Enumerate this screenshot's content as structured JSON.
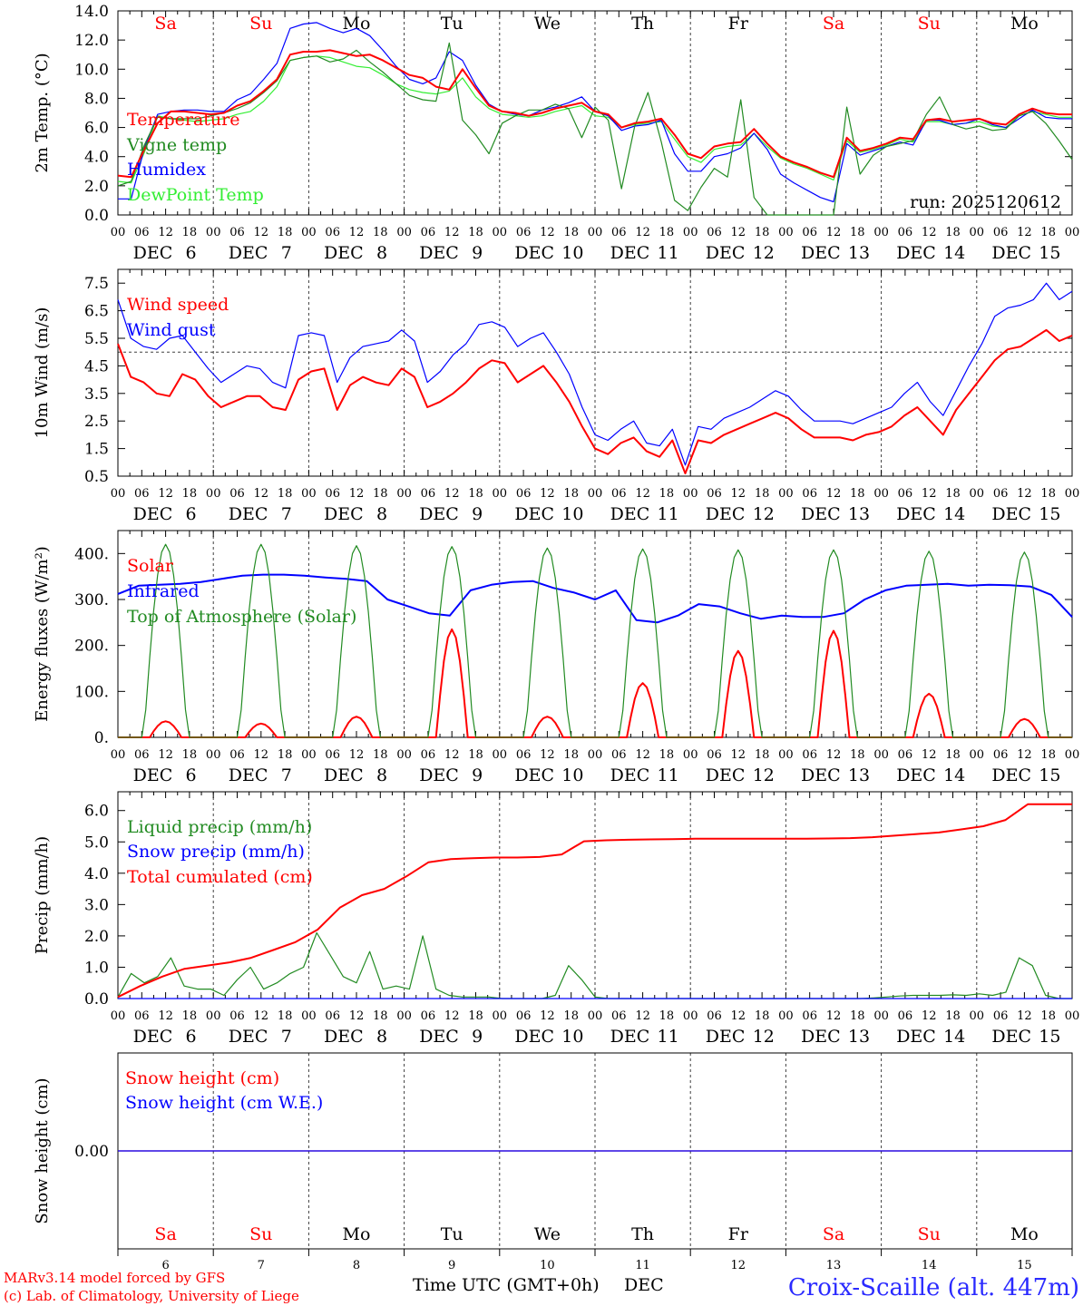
{
  "page": {
    "credit_line1": "MARv3.14 model forced by GFS",
    "credit_line2": "(c) Lab. of Climatology, University of Liege",
    "time_axis_label": "Time UTC (GMT+0h)",
    "month_label": "DEC",
    "station": "Croix-Scaille (alt. 447m)",
    "run_label": "run: 2025120612"
  },
  "time_axis": {
    "month": "DEC",
    "day_numbers": [
      "6",
      "7",
      "8",
      "9",
      "10",
      "11",
      "12",
      "13",
      "14",
      "15"
    ],
    "day_names": [
      "Sa",
      "Su",
      "Mo",
      "Tu",
      "We",
      "Th",
      "Fr",
      "Sa",
      "Su",
      "Mo"
    ],
    "weekend_flags": [
      true,
      true,
      false,
      false,
      false,
      false,
      false,
      true,
      true,
      false
    ],
    "hour_labels": [
      "00",
      "06",
      "12",
      "18"
    ],
    "end_hour_label": "00",
    "bottom_day_labels": [
      "6",
      "7",
      "8",
      "9",
      "10",
      "11",
      "12",
      "13",
      "14",
      "15"
    ]
  },
  "colors": {
    "red": "#ff0000",
    "green": "#228b22",
    "blue": "#0000ff",
    "light_green": "#33ee33",
    "weekend": "#ff0000",
    "weekday": "#000000"
  },
  "chart_data": [
    {
      "id": "temp",
      "type": "line",
      "ylabel": "2m Temp. (°C)",
      "ylim": [
        0,
        14
      ],
      "yticks": [
        0,
        2,
        4,
        6,
        8,
        10,
        12,
        14
      ],
      "ytick_labels": [
        "0.0",
        "2.0",
        "4.0",
        "6.0",
        "8.0",
        "10.0",
        "12.0",
        "14.0"
      ],
      "x_hours_step": 3,
      "series": [
        {
          "name": "Temperature",
          "color": "#ff0000",
          "thick": true,
          "values": [
            2.7,
            2.6,
            4.5,
            6.3,
            7.1,
            7.1,
            7.0,
            6.9,
            7.0,
            7.5,
            7.8,
            8.5,
            9.3,
            11.0,
            11.2,
            11.2,
            11.3,
            11.1,
            10.9,
            11.0,
            10.6,
            10.1,
            9.6,
            9.4,
            8.8,
            8.6,
            10.0,
            8.7,
            7.5,
            7.1,
            7.0,
            6.8,
            7.0,
            7.3,
            7.5,
            7.7,
            7.1,
            6.9,
            6.0,
            6.3,
            6.4,
            6.6,
            5.5,
            4.2,
            3.9,
            4.7,
            4.9,
            5.0,
            5.9,
            4.9,
            4.0,
            3.6,
            3.3,
            2.9,
            2.6,
            5.3,
            4.4,
            4.6,
            4.9,
            5.3,
            5.2,
            6.5,
            6.6,
            6.4,
            6.5,
            6.6,
            6.3,
            6.2,
            6.9,
            7.3,
            7.0,
            6.9,
            6.9
          ]
        },
        {
          "name": "Vigne temp",
          "color": "#228b22",
          "thick": false,
          "values": [
            2.0,
            2.3,
            4.8,
            6.7,
            6.6,
            6.6,
            6.6,
            6.8,
            7.0,
            7.3,
            7.7,
            8.4,
            9.2,
            10.6,
            10.8,
            10.9,
            10.5,
            10.7,
            11.3,
            10.5,
            9.8,
            9.0,
            8.2,
            7.9,
            7.8,
            11.8,
            6.5,
            5.5,
            4.2,
            6.3,
            6.8,
            7.2,
            7.2,
            7.6,
            7.3,
            5.3,
            7.4,
            6.5,
            1.8,
            6.1,
            8.4,
            5.0,
            1.0,
            0.3,
            1.9,
            3.2,
            2.6,
            7.9,
            1.2,
            0.0,
            0.0,
            0.0,
            0.0,
            0.0,
            0.0,
            7.4,
            2.8,
            4.1,
            4.7,
            4.9,
            5.1,
            6.9,
            8.1,
            6.2,
            5.9,
            6.1,
            5.8,
            5.9,
            6.8,
            7.1,
            6.3,
            5.1,
            3.8
          ]
        },
        {
          "name": "Humidex",
          "color": "#0000ff",
          "thick": false,
          "values": [
            1.1,
            1.1,
            4.6,
            6.9,
            7.1,
            7.2,
            7.2,
            7.1,
            7.1,
            7.9,
            8.3,
            9.3,
            10.4,
            12.8,
            13.1,
            13.2,
            12.8,
            12.5,
            12.8,
            12.3,
            11.3,
            10.2,
            9.3,
            9.0,
            9.4,
            11.2,
            10.6,
            8.9,
            7.6,
            7.1,
            6.9,
            6.8,
            7.2,
            7.4,
            7.7,
            8.1,
            7.1,
            6.8,
            5.8,
            6.1,
            6.2,
            6.5,
            4.2,
            3.0,
            3.0,
            4.0,
            4.2,
            4.6,
            5.6,
            4.5,
            2.8,
            2.2,
            1.7,
            1.2,
            0.9,
            4.9,
            4.1,
            4.4,
            4.7,
            5.0,
            4.8,
            6.5,
            6.5,
            6.2,
            6.3,
            6.6,
            6.2,
            6.0,
            6.6,
            7.2,
            6.7,
            6.6,
            6.6
          ]
        },
        {
          "name": "DewPoint Temp",
          "color": "#33ee33",
          "thick": false,
          "values": [
            2.3,
            2.2,
            4.3,
            6.8,
            6.6,
            6.5,
            6.4,
            6.5,
            6.6,
            6.9,
            7.1,
            7.8,
            8.8,
            10.6,
            10.8,
            10.9,
            10.8,
            10.5,
            10.2,
            10.1,
            9.6,
            9.0,
            8.6,
            8.4,
            8.3,
            8.5,
            9.4,
            8.1,
            7.3,
            6.9,
            6.8,
            6.7,
            6.8,
            7.1,
            7.3,
            7.5,
            6.8,
            6.7,
            6.0,
            6.2,
            6.3,
            6.4,
            5.2,
            4.0,
            3.6,
            4.5,
            4.7,
            4.8,
            5.6,
            4.7,
            3.9,
            3.5,
            3.2,
            2.8,
            2.4,
            5.1,
            4.3,
            4.5,
            4.8,
            5.2,
            5.0,
            6.4,
            6.4,
            6.2,
            6.3,
            6.4,
            6.1,
            6.0,
            6.8,
            7.1,
            6.9,
            6.7,
            6.7
          ]
        }
      ]
    },
    {
      "id": "wind",
      "type": "line",
      "ylabel": "10m Wind (m/s)",
      "ylim": [
        0.5,
        8.0
      ],
      "yticks": [
        0.5,
        1.5,
        2.5,
        3.5,
        4.5,
        5.5,
        6.5,
        7.5
      ],
      "ytick_labels": [
        "0.5",
        "1.5",
        "2.5",
        "3.5",
        "4.5",
        "5.5",
        "6.5",
        "7.5"
      ],
      "reference_line": 5.0,
      "x_hours_step": 3,
      "series": [
        {
          "name": "Wind speed",
          "color": "#ff0000",
          "thick": true,
          "values": [
            5.3,
            4.1,
            3.9,
            3.5,
            3.4,
            4.2,
            4.0,
            3.4,
            3.0,
            3.2,
            3.4,
            3.4,
            3.0,
            2.9,
            4.0,
            4.3,
            4.4,
            2.9,
            3.8,
            4.1,
            3.9,
            3.8,
            4.4,
            4.1,
            3.0,
            3.2,
            3.5,
            3.9,
            4.4,
            4.7,
            4.6,
            3.9,
            4.2,
            4.5,
            3.9,
            3.2,
            2.3,
            1.5,
            1.3,
            1.7,
            1.9,
            1.4,
            1.2,
            1.8,
            0.6,
            1.8,
            1.7,
            2.0,
            2.2,
            2.4,
            2.6,
            2.8,
            2.6,
            2.2,
            1.9,
            1.9,
            1.9,
            1.8,
            2.0,
            2.1,
            2.3,
            2.7,
            3.0,
            2.5,
            2.0,
            2.9,
            3.5,
            4.1,
            4.7,
            5.1,
            5.2,
            5.5,
            5.8,
            5.4,
            5.6
          ]
        },
        {
          "name": "Wind gust",
          "color": "#0000ff",
          "thick": false,
          "values": [
            6.9,
            5.5,
            5.2,
            5.1,
            5.5,
            5.6,
            5.0,
            4.4,
            3.9,
            4.2,
            4.5,
            4.4,
            3.9,
            3.7,
            5.6,
            5.7,
            5.6,
            3.9,
            4.8,
            5.2,
            5.3,
            5.4,
            5.8,
            5.4,
            3.9,
            4.3,
            4.9,
            5.3,
            6.0,
            6.1,
            5.9,
            5.2,
            5.5,
            5.7,
            5.0,
            4.2,
            3.0,
            2.0,
            1.8,
            2.2,
            2.5,
            1.7,
            1.6,
            2.2,
            0.9,
            2.3,
            2.2,
            2.6,
            2.8,
            3.0,
            3.3,
            3.6,
            3.4,
            2.9,
            2.5,
            2.5,
            2.5,
            2.4,
            2.6,
            2.8,
            3.0,
            3.5,
            3.9,
            3.2,
            2.7,
            3.6,
            4.5,
            5.3,
            6.3,
            6.6,
            6.7,
            6.9,
            7.5,
            6.9,
            7.2
          ]
        }
      ]
    },
    {
      "id": "energy",
      "type": "line",
      "ylabel": "Energy fluxes (W/m²)",
      "ylim": [
        0,
        450
      ],
      "yticks": [
        0,
        100,
        200,
        300,
        400
      ],
      "ytick_labels": [
        "0.",
        "100.",
        "200.",
        "300.",
        "400."
      ],
      "x_hours_step": 3,
      "series": [
        {
          "name": "Solar",
          "color": "#ff0000",
          "thick": true,
          "peaks": [
            35,
            30,
            45,
            235,
            45,
            118,
            188,
            232,
            95,
            40
          ]
        },
        {
          "name": "Infrared",
          "color": "#0000ff",
          "thick": true,
          "values": [
            312,
            330,
            332,
            334,
            338,
            345,
            352,
            354,
            354,
            352,
            348,
            345,
            340,
            300,
            285,
            270,
            265,
            320,
            332,
            338,
            340,
            325,
            315,
            300,
            320,
            255,
            250,
            265,
            290,
            285,
            270,
            258,
            265,
            262,
            262,
            270,
            300,
            320,
            330,
            332,
            334,
            330,
            332,
            331,
            328,
            310,
            262
          ]
        },
        {
          "name": "Top of Atmosphere (Solar)",
          "color": "#228b22",
          "thick": false,
          "peaks": [
            420,
            420,
            417,
            415,
            412,
            410,
            408,
            408,
            405,
            403
          ]
        }
      ]
    },
    {
      "id": "precip",
      "type": "line",
      "ylabel": "Precip (mm/h)",
      "ylim": [
        0,
        6.6
      ],
      "yticks": [
        0,
        1,
        2,
        3,
        4,
        5,
        6
      ],
      "ytick_labels": [
        "0.0",
        "1.0",
        "2.0",
        "3.0",
        "4.0",
        "5.0",
        "6.0"
      ],
      "x_hours_step": 3,
      "series": [
        {
          "name": "Liquid precip (mm/h)",
          "color": "#228b22",
          "thick": false,
          "values": [
            0.05,
            0.8,
            0.5,
            0.7,
            1.3,
            0.4,
            0.3,
            0.3,
            0.1,
            0.6,
            1.0,
            0.3,
            0.5,
            0.8,
            1.0,
            2.1,
            1.4,
            0.7,
            0.5,
            1.5,
            0.3,
            0.4,
            0.3,
            2.0,
            0.3,
            0.1,
            0.05,
            0.05,
            0.05,
            0.0,
            0.0,
            0.0,
            0.0,
            0.1,
            1.05,
            0.6,
            0.05,
            0.0,
            0.0,
            0.0,
            0.0,
            0.0,
            0.0,
            0.0,
            0.0,
            0.0,
            0.0,
            0.0,
            0.0,
            0.0,
            0.0,
            0.0,
            0.0,
            0.0,
            0.0,
            0.0,
            0.0,
            0.02,
            0.05,
            0.08,
            0.1,
            0.1,
            0.1,
            0.12,
            0.1,
            0.15,
            0.1,
            0.2,
            1.3,
            1.05,
            0.1,
            0.0,
            0.0
          ]
        },
        {
          "name": "Snow precip (mm/h)",
          "color": "#0000ff",
          "thick": false,
          "values": [
            0,
            0,
            0,
            0,
            0,
            0,
            0,
            0,
            0,
            0
          ]
        },
        {
          "name": "Total cumulated (cm)",
          "color": "#ff0000",
          "thick": true,
          "values": [
            0.05,
            0.4,
            0.7,
            0.95,
            1.05,
            1.15,
            1.3,
            1.55,
            1.8,
            2.2,
            2.9,
            3.3,
            3.5,
            3.9,
            4.35,
            4.45,
            4.48,
            4.5,
            4.5,
            4.52,
            4.6,
            5.02,
            5.05,
            5.07,
            5.08,
            5.09,
            5.1,
            5.1,
            5.1,
            5.1,
            5.1,
            5.1,
            5.11,
            5.12,
            5.15,
            5.2,
            5.25,
            5.3,
            5.4,
            5.5,
            5.7,
            6.2,
            6.2,
            6.2
          ]
        }
      ]
    },
    {
      "id": "snow",
      "type": "line",
      "ylabel": "Snow height (cm)",
      "ylim": [
        -1,
        1
      ],
      "yticks": [
        0
      ],
      "ytick_labels": [
        "0.00"
      ],
      "series": [
        {
          "name": "Snow height (cm)",
          "color": "#ff0000",
          "thick": false,
          "values": [
            0,
            0
          ]
        },
        {
          "name": "Snow height (cm W.E.)",
          "color": "#0000ff",
          "thick": false,
          "values": [
            0,
            0
          ]
        }
      ]
    }
  ]
}
